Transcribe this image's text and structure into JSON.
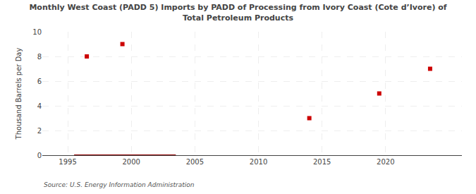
{
  "chart_data": {
    "type": "scatter",
    "title": "Monthly West Coast (PADD 5) Imports by PADD of Processing from Ivory Coast (Cote d’Ivore) of\nTotal Petroleum Products",
    "ylabel": "Thousand Barrels per Day",
    "annotation": "Source: U.S. Energy Information Administration",
    "series": [
      {
        "type": "scatter",
        "color": "#cc0000",
        "marker": "square",
        "x": [
          1996.5,
          1999.3,
          2014.0,
          2019.5,
          2023.5
        ],
        "values": [
          8.0,
          9.0,
          3.0,
          5.0,
          7.0
        ]
      },
      {
        "type": "line",
        "color": "#8b0000",
        "line_style": "solid",
        "x": [
          1995.5,
          2003.5
        ],
        "values": [
          0.0,
          0.0
        ]
      }
    ],
    "xlim": [
      1993.0,
      2026.0
    ],
    "ylim": [
      0,
      10.0
    ],
    "xticks": [
      1995,
      2000,
      2005,
      2010,
      2015,
      2020
    ],
    "yticks": [
      0,
      2,
      4,
      6,
      8,
      10
    ],
    "grid": true
  }
}
